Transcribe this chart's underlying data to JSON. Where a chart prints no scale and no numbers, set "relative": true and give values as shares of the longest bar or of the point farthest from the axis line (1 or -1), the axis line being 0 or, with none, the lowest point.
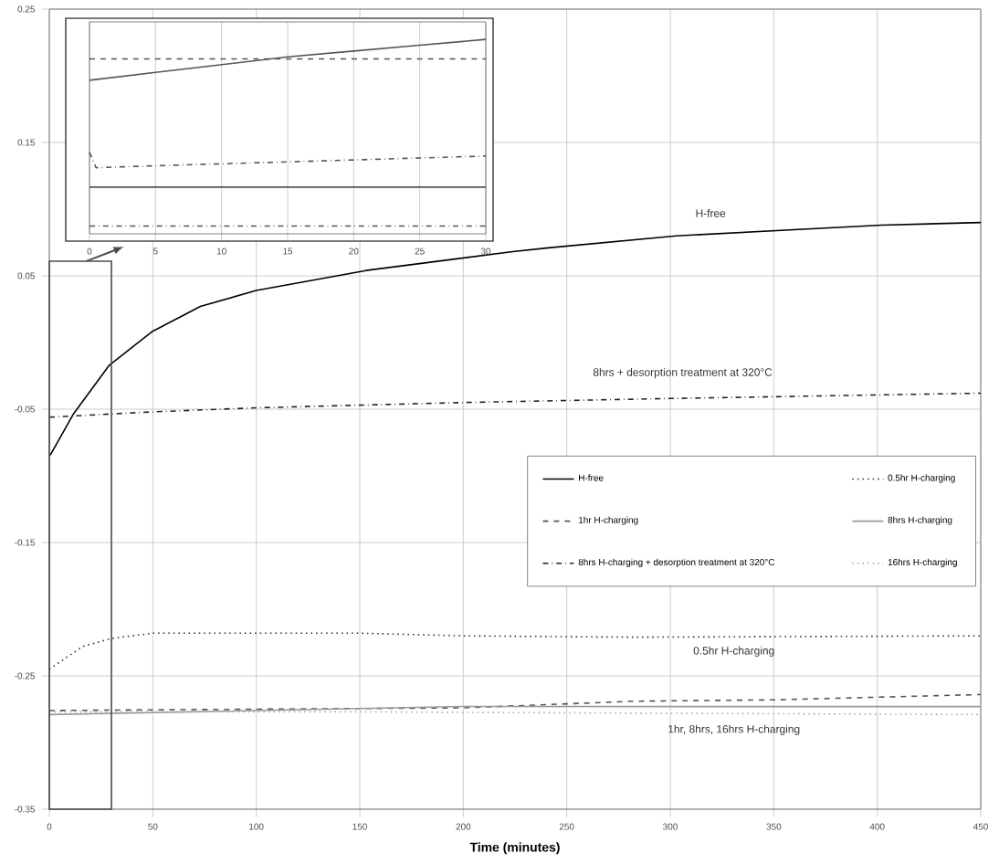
{
  "chart_data": [
    {
      "type": "line",
      "xlabel": "Time (minutes)",
      "xlim": [
        0,
        450
      ],
      "xticks": [
        0,
        50,
        100,
        150,
        200,
        250,
        300,
        350,
        400,
        450
      ],
      "ylim": [
        -0.35,
        0.25
      ],
      "yticks": [
        -0.35,
        -0.25,
        -0.15,
        -0.05,
        0.05,
        0.15,
        0.25
      ],
      "grid": true,
      "legend": "right",
      "series": [
        {
          "name": "H-free",
          "color": "#000000",
          "line_style": "solid",
          "x": [
            0,
            1,
            11.5,
            29,
            49.5,
            73,
            100,
            153,
            223,
            241,
            303,
            402,
            450
          ],
          "values": [
            -0.085,
            -0.083,
            -0.054,
            -0.017,
            0.008,
            0.027,
            0.039,
            0.054,
            0.068,
            0.071,
            0.08,
            0.088,
            0.09
          ]
        },
        {
          "name": "0.5hr H-charging",
          "color": "#333333",
          "line_style": "dotted",
          "x": [
            0,
            16,
            30,
            50,
            99,
            150,
            200,
            283,
            450
          ],
          "values": [
            -0.245,
            -0.228,
            -0.222,
            -0.218,
            -0.218,
            -0.218,
            -0.22,
            -0.221,
            -0.22
          ]
        },
        {
          "name": "1hr H-charging",
          "color": "#555555",
          "line_style": "dashed",
          "x": [
            0,
            200,
            283,
            350,
            450
          ],
          "values": [
            -0.276,
            -0.274,
            -0.269,
            -0.268,
            -0.264
          ]
        },
        {
          "name": "8hrs H-charging",
          "color": "#999999",
          "line_style": "solid",
          "x": [
            0,
            200,
            450
          ],
          "values": [
            -0.279,
            -0.273,
            -0.273
          ]
        },
        {
          "name": "8hrs H-charging + desorption treatment at 320°C",
          "color": "#222222",
          "line_style": "dashdot",
          "x": [
            0,
            50,
            100,
            200,
            300,
            450
          ],
          "values": [
            -0.056,
            -0.052,
            -0.049,
            -0.045,
            -0.042,
            -0.038
          ]
        },
        {
          "name": "16hrs H-charging",
          "color": "#aaaaaa",
          "line_style": "dotted",
          "x": [
            0,
            150,
            283,
            450
          ],
          "values": [
            -0.277,
            -0.277,
            -0.278,
            -0.279
          ]
        }
      ],
      "annotations": [
        "H-free",
        "8hrs + desorption treatment at 320°C",
        "0.5hr H-charging",
        "1hr, 8hrs, 16hrs H-charging"
      ]
    },
    {
      "type": "line",
      "relative": true,
      "tick_labels": "x",
      "grid": "x",
      "xlim": [
        0,
        30
      ],
      "xticks": [
        0,
        5,
        10,
        15,
        20,
        25,
        30
      ],
      "series": [
        {
          "color": "#555555",
          "line_style": "solid",
          "x": [
            0,
            5,
            10,
            15,
            20,
            25,
            30
          ],
          "values": [
            0.79,
            0.83,
            0.87,
            0.91,
            0.94,
            0.97,
            1.0
          ]
        },
        {
          "color": "#555555",
          "line_style": "dashed",
          "x": [
            0,
            30
          ],
          "values": [
            0.9,
            0.9
          ]
        },
        {
          "color": "#555555",
          "line_style": "dashdot",
          "x": [
            0,
            0.5,
            5,
            10,
            15,
            20,
            25,
            30
          ],
          "values": [
            0.42,
            0.34,
            0.35,
            0.36,
            0.37,
            0.38,
            0.39,
            0.4
          ]
        },
        {
          "color": "#555555",
          "line_style": "solid",
          "x": [
            0,
            30
          ],
          "values": [
            0.24,
            0.24
          ]
        },
        {
          "color": "#555555",
          "line_style": "dashdot",
          "x": [
            0,
            30
          ],
          "values": [
            0.04,
            0.04
          ]
        }
      ]
    }
  ]
}
